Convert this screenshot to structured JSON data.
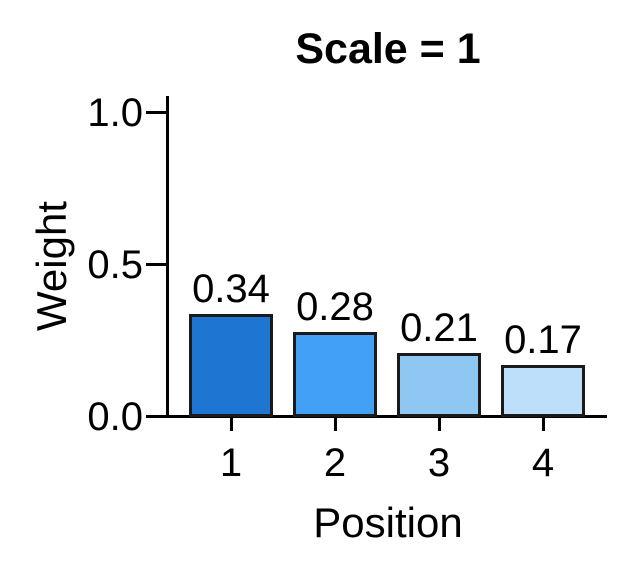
{
  "figure": {
    "title": "Scale = 1",
    "xlabel": "Position",
    "ylabel": "Weight"
  },
  "axes": {
    "y_ticks": [
      "1.0",
      "0.5",
      "0.0"
    ],
    "x_ticks": [
      "1",
      "2",
      "3",
      "4"
    ]
  },
  "chart_data": {
    "type": "bar",
    "title": "Scale = 1",
    "xlabel": "Position",
    "ylabel": "Weight",
    "categories": [
      "1",
      "2",
      "3",
      "4"
    ],
    "values": [
      0.34,
      0.28,
      0.21,
      0.17
    ],
    "value_labels": [
      "0.34",
      "0.28",
      "0.21",
      "0.17"
    ],
    "bar_colors": [
      "#1e76d2",
      "#42a1f5",
      "#8fc7f3",
      "#bedff9"
    ],
    "bar_edge_color": "#1a1a1a",
    "ylim": [
      0.0,
      1.05
    ],
    "yticks": [
      0.0,
      0.5,
      1.0
    ],
    "grid": false,
    "legend": null
  }
}
